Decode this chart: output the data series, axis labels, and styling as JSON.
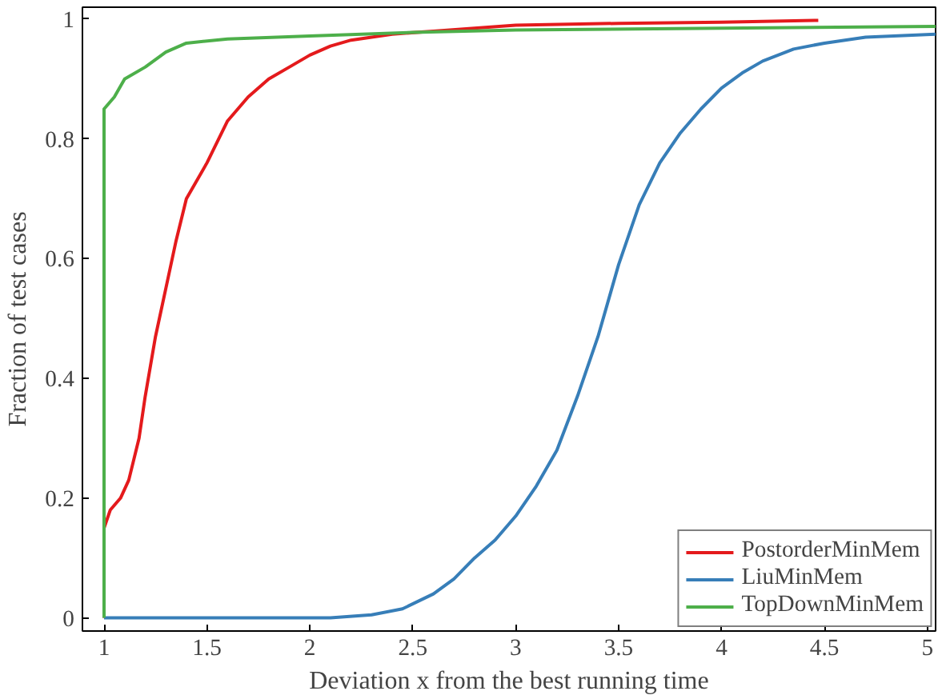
{
  "chart_data": {
    "type": "line",
    "xlabel": "Deviation x from the best running time",
    "ylabel": "Fraction of test cases",
    "xlim": [
      0.895,
      5.04
    ],
    "ylim": [
      -0.022,
      1.02
    ],
    "xticks": [
      1,
      1.5,
      2,
      2.5,
      3,
      3.5,
      4,
      4.5,
      5
    ],
    "yticks": [
      0,
      0.2,
      0.4,
      0.6,
      0.8,
      1
    ],
    "grid": false,
    "legend": "bottom right",
    "line_style": "solid",
    "marker": "none",
    "series": [
      {
        "name": "PostorderMinMem",
        "color": "#e41a1c",
        "x": [
          1,
          1,
          1.03,
          1.08,
          1.12,
          1.17,
          1.2,
          1.25,
          1.3,
          1.35,
          1.4,
          1.5,
          1.6,
          1.7,
          1.8,
          1.9,
          2.0,
          2.1,
          2.2,
          2.4,
          2.6,
          3.0,
          3.5,
          4.0,
          4.47
        ],
        "values": [
          0,
          0.15,
          0.18,
          0.2,
          0.23,
          0.3,
          0.37,
          0.47,
          0.55,
          0.63,
          0.7,
          0.76,
          0.83,
          0.87,
          0.9,
          0.92,
          0.94,
          0.955,
          0.965,
          0.975,
          0.98,
          0.99,
          0.993,
          0.995,
          0.998
        ]
      },
      {
        "name": "LiuMinMem",
        "color": "#377eb8",
        "x": [
          1,
          2.1,
          2.3,
          2.45,
          2.6,
          2.7,
          2.8,
          2.9,
          3.0,
          3.1,
          3.2,
          3.3,
          3.4,
          3.5,
          3.6,
          3.7,
          3.8,
          3.9,
          4.0,
          4.1,
          4.2,
          4.35,
          4.5,
          4.7,
          5.04
        ],
        "values": [
          0,
          0,
          0.005,
          0.015,
          0.04,
          0.065,
          0.1,
          0.13,
          0.17,
          0.22,
          0.28,
          0.37,
          0.47,
          0.59,
          0.69,
          0.76,
          0.81,
          0.85,
          0.885,
          0.91,
          0.93,
          0.95,
          0.96,
          0.97,
          0.975
        ]
      },
      {
        "name": "TopDownMinMem",
        "color": "#4daf4a",
        "x": [
          1,
          1,
          1.05,
          1.1,
          1.2,
          1.3,
          1.4,
          1.6,
          2,
          2.5,
          3,
          4,
          5.04
        ],
        "values": [
          0,
          0.85,
          0.87,
          0.9,
          0.92,
          0.945,
          0.96,
          0.967,
          0.972,
          0.978,
          0.982,
          0.985,
          0.988
        ]
      }
    ]
  }
}
